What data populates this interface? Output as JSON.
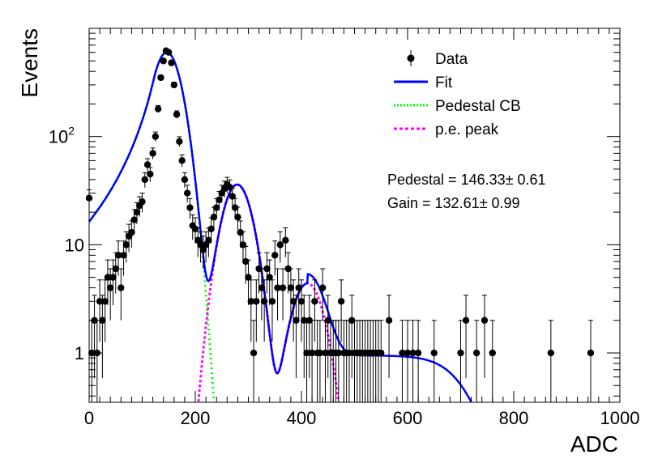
{
  "chart_data": {
    "type": "scatter",
    "xlabel": "ADC",
    "ylabel": "Events",
    "xlim": [
      0,
      1000
    ],
    "ylim": [
      0.35,
      1000
    ],
    "yscale": "log",
    "xticks": [
      0,
      200,
      400,
      600,
      800,
      1000
    ],
    "yticks": [
      {
        "value": 1,
        "label": "1",
        "exponent": ""
      },
      {
        "value": 10,
        "label": "10",
        "exponent": ""
      },
      {
        "value": 100,
        "label": "10",
        "exponent": "2"
      }
    ],
    "grid": false,
    "legend_position": "top-right",
    "legend": [
      {
        "label": "Data",
        "style": "marker",
        "color": "#000000"
      },
      {
        "label": "Fit",
        "style": "solid",
        "color": "#0000ff"
      },
      {
        "label": "Pedestal CB",
        "style": "dotted",
        "color": "#00ff00"
      },
      {
        "label": "p.e. peak",
        "style": "dashed",
        "color": "#ff00ff"
      }
    ],
    "annotations": [
      {
        "text": "Pedestal = 146.33",
        "pm": "±",
        "value": "0.61"
      },
      {
        "text": "Gain = 132.61",
        "pm": "±",
        "value": "0.99"
      }
    ],
    "fit_params": {
      "pedestal": 146.33,
      "gain": 132.61,
      "pedestal_amplitude": 600,
      "pedestal_sigma": 23,
      "pe1_amplitude": 36,
      "pe1_sigma": 24,
      "pe2_amplitude": 4.4,
      "pe2_sigma": 26
    },
    "data_points": [
      {
        "x": 0,
        "y": 27
      },
      {
        "x": 5,
        "y": 1
      },
      {
        "x": 10,
        "y": 2
      },
      {
        "x": 15,
        "y": 1
      },
      {
        "x": 20,
        "y": 3
      },
      {
        "x": 25,
        "y": 2
      },
      {
        "x": 30,
        "y": 3
      },
      {
        "x": 35,
        "y": 5
      },
      {
        "x": 40,
        "y": 4
      },
      {
        "x": 45,
        "y": 5
      },
      {
        "x": 50,
        "y": 6
      },
      {
        "x": 55,
        "y": 8
      },
      {
        "x": 60,
        "y": 4
      },
      {
        "x": 65,
        "y": 8
      },
      {
        "x": 70,
        "y": 10
      },
      {
        "x": 75,
        "y": 12
      },
      {
        "x": 80,
        "y": 13
      },
      {
        "x": 85,
        "y": 17
      },
      {
        "x": 90,
        "y": 20
      },
      {
        "x": 95,
        "y": 23
      },
      {
        "x": 100,
        "y": 25
      },
      {
        "x": 105,
        "y": 40
      },
      {
        "x": 110,
        "y": 55
      },
      {
        "x": 115,
        "y": 45
      },
      {
        "x": 120,
        "y": 70
      },
      {
        "x": 125,
        "y": 100
      },
      {
        "x": 130,
        "y": 180
      },
      {
        "x": 135,
        "y": 350
      },
      {
        "x": 140,
        "y": 500
      },
      {
        "x": 145,
        "y": 620
      },
      {
        "x": 150,
        "y": 600
      },
      {
        "x": 155,
        "y": 480
      },
      {
        "x": 160,
        "y": 300
      },
      {
        "x": 165,
        "y": 160
      },
      {
        "x": 170,
        "y": 90
      },
      {
        "x": 175,
        "y": 60
      },
      {
        "x": 180,
        "y": 40
      },
      {
        "x": 185,
        "y": 30
      },
      {
        "x": 190,
        "y": 22
      },
      {
        "x": 195,
        "y": 15
      },
      {
        "x": 200,
        "y": 14
      },
      {
        "x": 205,
        "y": 11
      },
      {
        "x": 210,
        "y": 10
      },
      {
        "x": 215,
        "y": 9
      },
      {
        "x": 220,
        "y": 10
      },
      {
        "x": 225,
        "y": 11
      },
      {
        "x": 230,
        "y": 14
      },
      {
        "x": 235,
        "y": 18
      },
      {
        "x": 240,
        "y": 22
      },
      {
        "x": 245,
        "y": 26
      },
      {
        "x": 250,
        "y": 30
      },
      {
        "x": 255,
        "y": 33
      },
      {
        "x": 260,
        "y": 36
      },
      {
        "x": 265,
        "y": 34
      },
      {
        "x": 270,
        "y": 28
      },
      {
        "x": 275,
        "y": 22
      },
      {
        "x": 280,
        "y": 18
      },
      {
        "x": 285,
        "y": 13
      },
      {
        "x": 290,
        "y": 10
      },
      {
        "x": 295,
        "y": 7
      },
      {
        "x": 300,
        "y": 5
      },
      {
        "x": 305,
        "y": 3
      },
      {
        "x": 310,
        "y": 1
      },
      {
        "x": 315,
        "y": 3
      },
      {
        "x": 320,
        "y": 6
      },
      {
        "x": 325,
        "y": 4
      },
      {
        "x": 330,
        "y": 3
      },
      {
        "x": 335,
        "y": 6
      },
      {
        "x": 340,
        "y": 5
      },
      {
        "x": 345,
        "y": 3
      },
      {
        "x": 350,
        "y": 8
      },
      {
        "x": 355,
        "y": 4
      },
      {
        "x": 360,
        "y": 10
      },
      {
        "x": 365,
        "y": 4
      },
      {
        "x": 370,
        "y": 11
      },
      {
        "x": 375,
        "y": 6
      },
      {
        "x": 380,
        "y": 4
      },
      {
        "x": 385,
        "y": 3
      },
      {
        "x": 390,
        "y": 2
      },
      {
        "x": 395,
        "y": 4
      },
      {
        "x": 400,
        "y": 3
      },
      {
        "x": 405,
        "y": 2
      },
      {
        "x": 410,
        "y": 1
      },
      {
        "x": 415,
        "y": 2
      },
      {
        "x": 420,
        "y": 1
      },
      {
        "x": 425,
        "y": 3
      },
      {
        "x": 430,
        "y": 1
      },
      {
        "x": 435,
        "y": 1
      },
      {
        "x": 440,
        "y": 4
      },
      {
        "x": 445,
        "y": 1
      },
      {
        "x": 450,
        "y": 2
      },
      {
        "x": 455,
        "y": 1
      },
      {
        "x": 460,
        "y": 1
      },
      {
        "x": 465,
        "y": 1
      },
      {
        "x": 470,
        "y": 1
      },
      {
        "x": 475,
        "y": 3
      },
      {
        "x": 480,
        "y": 1
      },
      {
        "x": 485,
        "y": 1
      },
      {
        "x": 490,
        "y": 1
      },
      {
        "x": 495,
        "y": 2
      },
      {
        "x": 500,
        "y": 1
      },
      {
        "x": 505,
        "y": 1
      },
      {
        "x": 510,
        "y": 1
      },
      {
        "x": 515,
        "y": 1
      },
      {
        "x": 520,
        "y": 1
      },
      {
        "x": 525,
        "y": 1
      },
      {
        "x": 530,
        "y": 1
      },
      {
        "x": 535,
        "y": 1
      },
      {
        "x": 540,
        "y": 1
      },
      {
        "x": 545,
        "y": 1
      },
      {
        "x": 550,
        "y": 1
      },
      {
        "x": 565,
        "y": 2
      },
      {
        "x": 590,
        "y": 1
      },
      {
        "x": 600,
        "y": 1
      },
      {
        "x": 610,
        "y": 1
      },
      {
        "x": 620,
        "y": 1
      },
      {
        "x": 650,
        "y": 1
      },
      {
        "x": 700,
        "y": 1
      },
      {
        "x": 710,
        "y": 2
      },
      {
        "x": 730,
        "y": 1
      },
      {
        "x": 745,
        "y": 2
      },
      {
        "x": 760,
        "y": 1
      },
      {
        "x": 870,
        "y": 1
      },
      {
        "x": 945,
        "y": 1
      }
    ]
  }
}
